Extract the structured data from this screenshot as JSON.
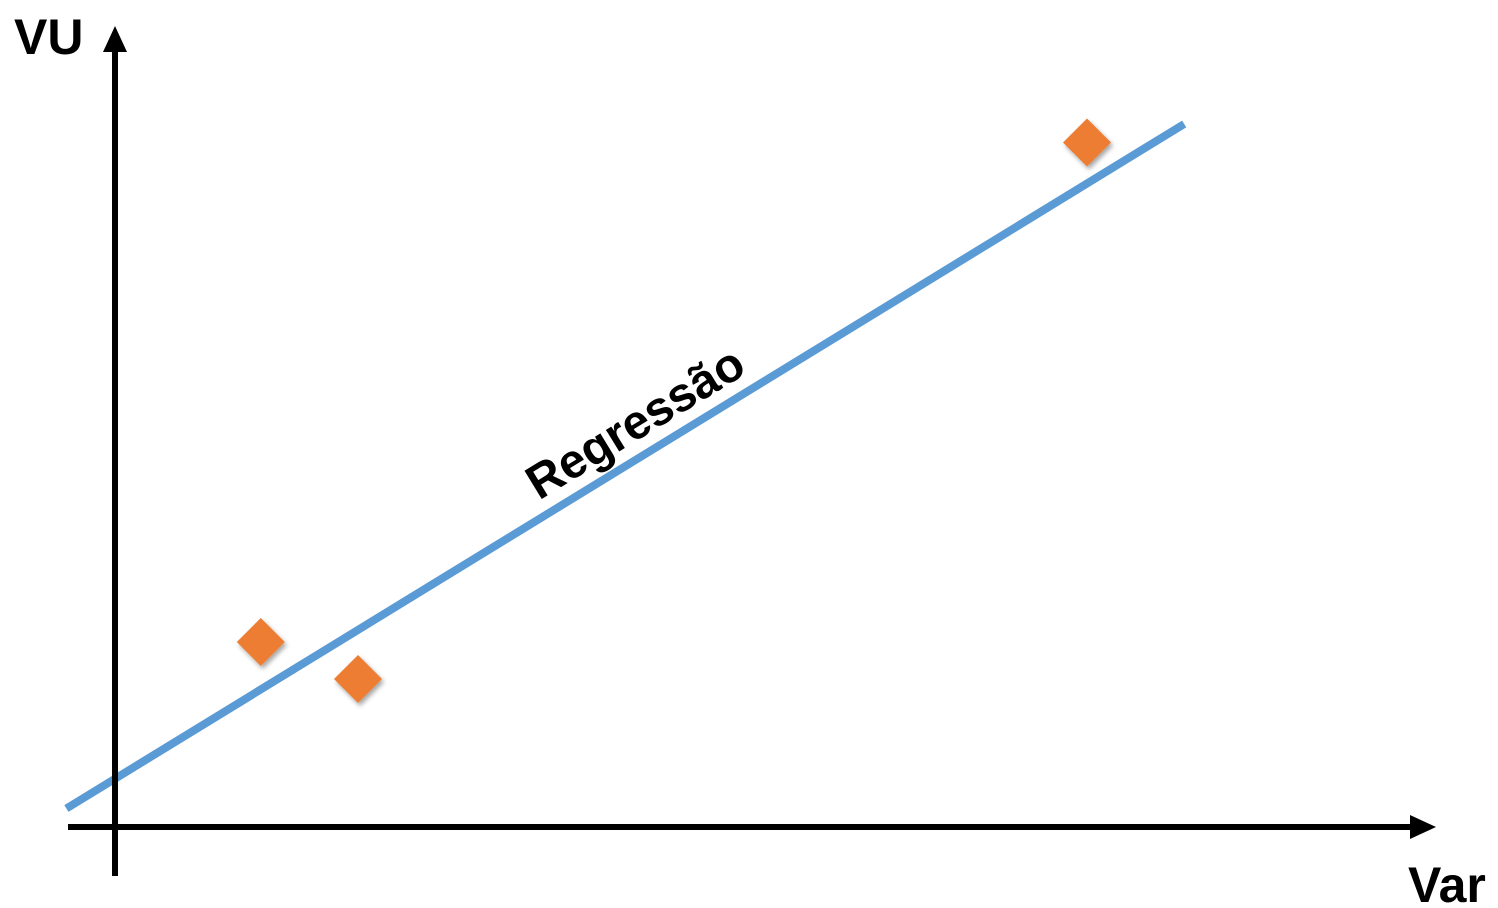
{
  "chart_data": {
    "type": "scatter",
    "title": "",
    "xlabel": "Var",
    "ylabel": "VU",
    "xlim": [
      -1,
      28
    ],
    "ylim": [
      -1,
      17
    ],
    "grid": false,
    "legend": "none",
    "axis_color": "#000000",
    "points": [
      {
        "x": 3,
        "y": 4
      },
      {
        "x": 5,
        "y": 3.2
      },
      {
        "x": 20,
        "y": 14.8
      }
    ],
    "point_color": "#ed7d31",
    "regression_line": {
      "x": [
        -1,
        22
      ],
      "y": [
        0.4,
        15.2
      ],
      "color": "#5b9bd5",
      "label": "Regressão"
    }
  }
}
